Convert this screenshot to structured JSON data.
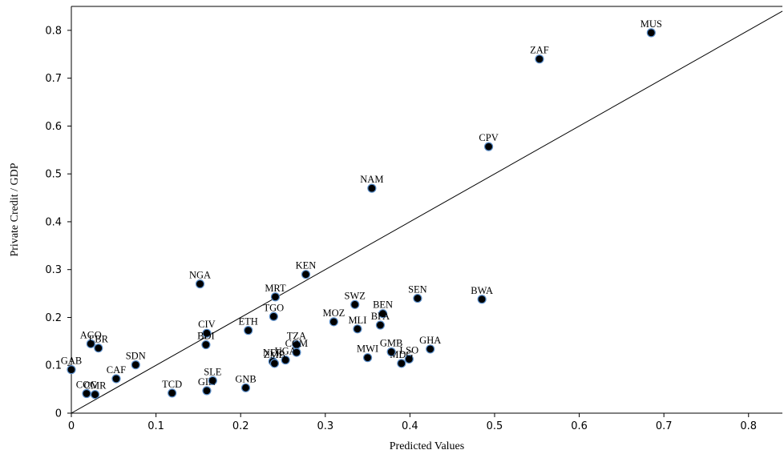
{
  "chart_data": {
    "type": "scatter",
    "title": "",
    "xlabel": "Predicted Values",
    "ylabel": "Private Credit / GDP",
    "xlim": [
      0,
      0.84
    ],
    "ylim": [
      0,
      0.85
    ],
    "x_ticks": [
      0,
      0.1,
      0.2,
      0.3,
      0.4,
      0.5,
      0.6,
      0.7,
      0.8
    ],
    "x_tick_labels": [
      "0",
      "0.1",
      "0.2",
      "0.3",
      "0.4",
      "0.5",
      "0.6",
      "0.7",
      "0.8"
    ],
    "y_ticks": [
      0,
      0.1,
      0.2,
      0.3,
      0.4,
      0.5,
      0.6,
      0.7,
      0.8
    ],
    "y_tick_labels": [
      "0",
      "0.1",
      "0.2",
      "0.3",
      "0.4",
      "0.5",
      "0.6",
      "0.7",
      "0.8"
    ],
    "grid": false,
    "reference_line": {
      "from": [
        0,
        0
      ],
      "to": [
        0.84,
        0.84
      ]
    },
    "colors": {
      "point_fill": "#000000",
      "point_edge": "#5b8ec9",
      "line": "#000000"
    },
    "points": [
      {
        "label": "MUS",
        "x": 0.685,
        "y": 0.795
      },
      {
        "label": "ZAF",
        "x": 0.553,
        "y": 0.74
      },
      {
        "label": "CPV",
        "x": 0.493,
        "y": 0.557
      },
      {
        "label": "NAM",
        "x": 0.355,
        "y": 0.47
      },
      {
        "label": "KEN",
        "x": 0.277,
        "y": 0.29
      },
      {
        "label": "NGA",
        "x": 0.152,
        "y": 0.27
      },
      {
        "label": "MRT",
        "x": 0.241,
        "y": 0.243
      },
      {
        "label": "SEN",
        "x": 0.409,
        "y": 0.24
      },
      {
        "label": "BWA",
        "x": 0.485,
        "y": 0.238
      },
      {
        "label": "SWZ",
        "x": 0.335,
        "y": 0.227
      },
      {
        "label": "BEN",
        "x": 0.368,
        "y": 0.208
      },
      {
        "label": "TGO",
        "x": 0.239,
        "y": 0.202
      },
      {
        "label": "MOZ",
        "x": 0.31,
        "y": 0.191
      },
      {
        "label": "BFA",
        "x": 0.365,
        "y": 0.184
      },
      {
        "label": "MLI",
        "x": 0.338,
        "y": 0.176
      },
      {
        "label": "ETH",
        "x": 0.209,
        "y": 0.173
      },
      {
        "label": "CIV",
        "x": 0.16,
        "y": 0.167
      },
      {
        "label": "AGO",
        "x": 0.023,
        "y": 0.145
      },
      {
        "label": "BDI",
        "x": 0.159,
        "y": 0.143
      },
      {
        "label": "LBR",
        "x": 0.032,
        "y": 0.136
      },
      {
        "label": "GHA",
        "x": 0.424,
        "y": 0.134
      },
      {
        "label": "TZA",
        "x": 0.266,
        "y": 0.143
      },
      {
        "label": "GMB",
        "x": 0.378,
        "y": 0.128
      },
      {
        "label": "COM",
        "x": 0.266,
        "y": 0.127
      },
      {
        "label": "MWI",
        "x": 0.35,
        "y": 0.116
      },
      {
        "label": "LSO",
        "x": 0.399,
        "y": 0.113
      },
      {
        "label": "MDG",
        "x": 0.39,
        "y": 0.104
      },
      {
        "label": "NER",
        "x": 0.238,
        "y": 0.108
      },
      {
        "label": "ZMB",
        "x": 0.24,
        "y": 0.104
      },
      {
        "label": "UGA",
        "x": 0.253,
        "y": 0.111
      },
      {
        "label": "SDN",
        "x": 0.076,
        "y": 0.101
      },
      {
        "label": "GAB",
        "x": 0.0,
        "y": 0.091
      },
      {
        "label": "CAF",
        "x": 0.053,
        "y": 0.072
      },
      {
        "label": "SLE",
        "x": 0.167,
        "y": 0.068
      },
      {
        "label": "GNB",
        "x": 0.206,
        "y": 0.053
      },
      {
        "label": "GIN",
        "x": 0.16,
        "y": 0.047
      },
      {
        "label": "TCD",
        "x": 0.119,
        "y": 0.042
      },
      {
        "label": "COG",
        "x": 0.018,
        "y": 0.041
      },
      {
        "label": "CMR",
        "x": 0.028,
        "y": 0.039
      }
    ]
  }
}
